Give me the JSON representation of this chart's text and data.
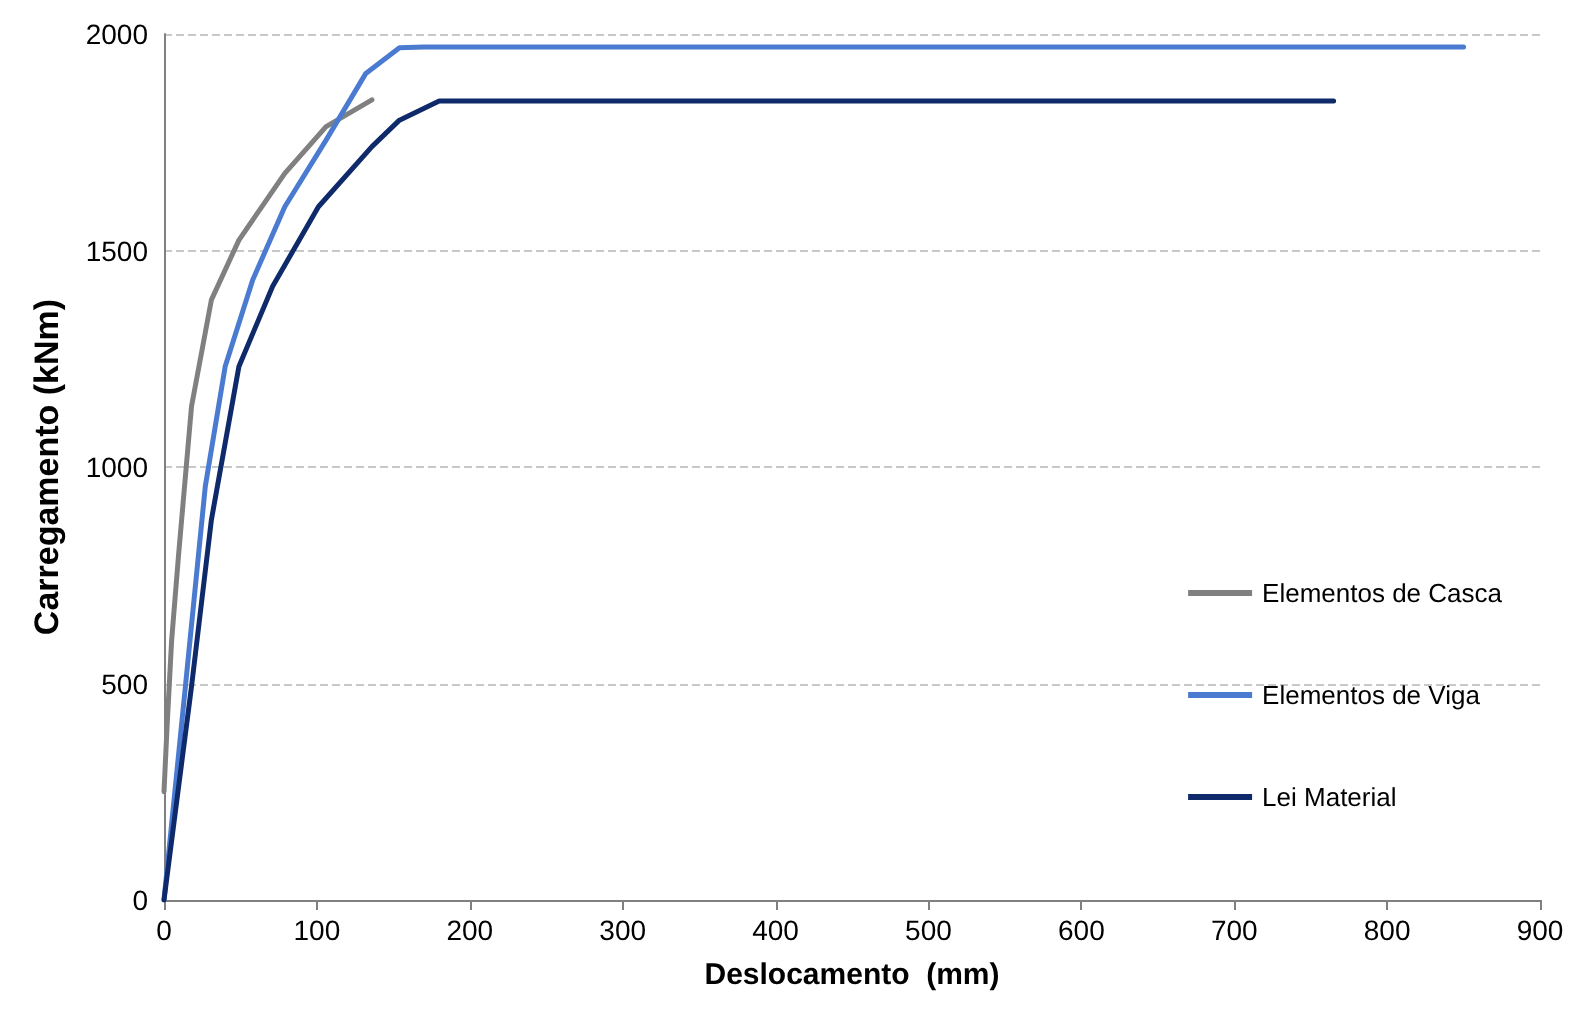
{
  "chart_data": {
    "type": "line",
    "xlabel": "Deslocamento  (mm)",
    "ylabel": "Carregamento (kNm)",
    "xlim": [
      0,
      900
    ],
    "xticks": [
      0,
      100,
      200,
      300,
      400,
      500,
      600,
      700,
      800,
      900
    ],
    "ylim": [
      0,
      2000
    ],
    "yticks": [
      0,
      500,
      1000,
      1500,
      2000
    ],
    "grid": "y",
    "legend": "right",
    "marker": "none",
    "line_style": "solid",
    "series": [
      {
        "name": "Elementos de Casca",
        "color": "#808080",
        "x": [
          0,
          2,
          5,
          9.6,
          18,
          31,
          49,
          79,
          106,
          136
        ],
        "values": [
          250,
          400,
          600,
          800,
          1140,
          1386,
          1524,
          1678,
          1786,
          1848
        ]
      },
      {
        "name": "Elementos de Viga",
        "color": "#4a7bd0",
        "x": [
          0,
          14,
          27,
          40,
          58,
          79,
          106,
          132,
          154,
          170,
          850
        ],
        "values": [
          0,
          493,
          955,
          1232,
          1432,
          1601,
          1755,
          1909,
          1968,
          1970,
          1970
        ]
      },
      {
        "name": "Lei Material",
        "color": "#0f2a6b",
        "x": [
          0,
          18,
          31,
          49,
          71,
          101,
          136,
          154,
          180,
          200,
          765
        ],
        "values": [
          0,
          493,
          878,
          1232,
          1417,
          1601,
          1740,
          1801,
          1845,
          1845,
          1845
        ]
      }
    ]
  }
}
